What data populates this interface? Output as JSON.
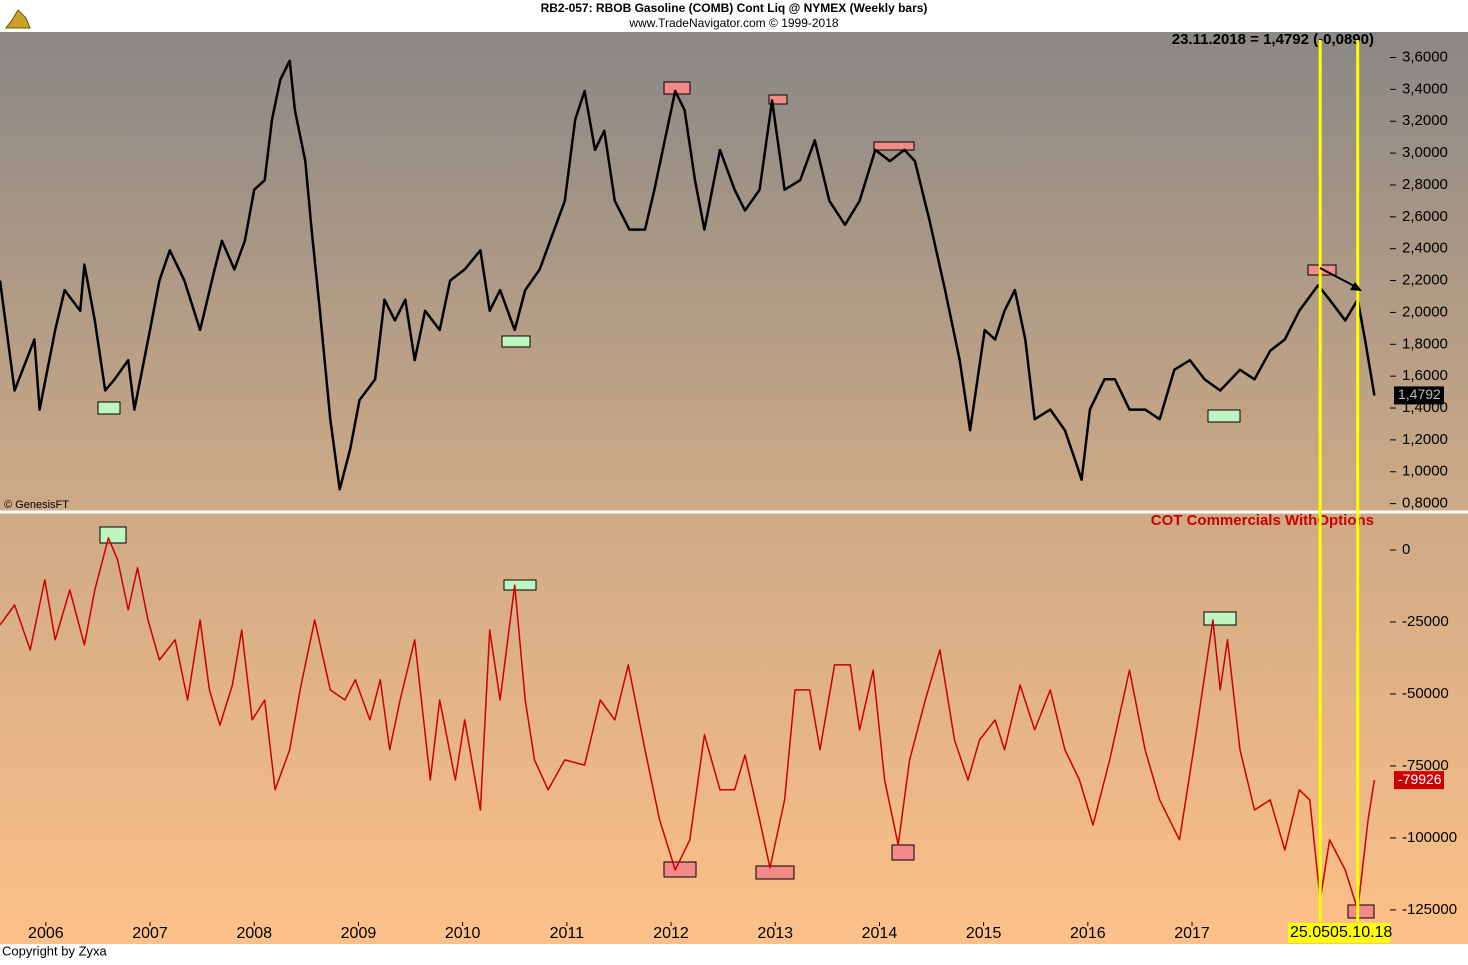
{
  "header": {
    "title": "RB2-057:  RBOB Gasoline (COMB) Cont Liq @ NYMEX  (Weekly bars)",
    "subtitle": "www.TradeNavigator.com © 1999-2018"
  },
  "footer": "Copyright by Zyxa",
  "chart_data": [
    {
      "type": "line",
      "annotation": "23.11.2018 = 1,4792 (-0,0890)",
      "source": "© GenesisFT",
      "last_value_label": "1,4792",
      "xlim": [
        2005.56,
        2018.9
      ],
      "ylim": [
        0.76,
        3.76
      ],
      "yticks": [
        {
          "value": 0.8,
          "label": "0,8000"
        },
        {
          "value": 1.0,
          "label": "1,0000"
        },
        {
          "value": 1.2,
          "label": "1,2000"
        },
        {
          "value": 1.4,
          "label": "1,4000"
        },
        {
          "value": 1.6,
          "label": "1,6000"
        },
        {
          "value": 1.8,
          "label": "1,8000"
        },
        {
          "value": 2.0,
          "label": "2,0000"
        },
        {
          "value": 2.2,
          "label": "2,2000"
        },
        {
          "value": 2.4,
          "label": "2,4000"
        },
        {
          "value": 2.6,
          "label": "2,6000"
        },
        {
          "value": 2.8,
          "label": "2,8000"
        },
        {
          "value": 3.0,
          "label": "3,0000"
        },
        {
          "value": 3.2,
          "label": "3,2000"
        },
        {
          "value": 3.4,
          "label": "3,4000"
        },
        {
          "value": 3.6,
          "label": "3,6000"
        }
      ],
      "x": [
        2005.56,
        2005.7,
        2005.89,
        2005.94,
        2006.09,
        2006.18,
        2006.33,
        2006.37,
        2006.47,
        2006.57,
        2006.66,
        2006.79,
        2006.85,
        2007.0,
        2007.09,
        2007.19,
        2007.33,
        2007.48,
        2007.62,
        2007.69,
        2007.81,
        2007.91,
        2008.0,
        2008.1,
        2008.17,
        2008.25,
        2008.34,
        2008.39,
        2008.49,
        2008.55,
        2008.63,
        2008.73,
        2008.82,
        2008.92,
        2009.01,
        2009.16,
        2009.25,
        2009.35,
        2009.45,
        2009.54,
        2009.64,
        2009.78,
        2009.88,
        2010.02,
        2010.17,
        2010.26,
        2010.36,
        2010.5,
        2010.6,
        2010.74,
        2010.84,
        2010.98,
        2011.08,
        2011.17,
        2011.27,
        2011.36,
        2011.46,
        2011.6,
        2011.75,
        2011.84,
        2011.94,
        2012.04,
        2012.13,
        2012.23,
        2012.32,
        2012.47,
        2012.61,
        2012.71,
        2012.85,
        2012.97,
        2013.09,
        2013.24,
        2013.38,
        2013.52,
        2013.67,
        2013.81,
        2013.96,
        2014.1,
        2014.24,
        2014.34,
        2014.48,
        2014.63,
        2014.77,
        2014.87,
        2015.01,
        2015.11,
        2015.2,
        2015.3,
        2015.4,
        2015.49,
        2015.64,
        2015.78,
        2015.88,
        2015.94,
        2016.02,
        2016.16,
        2016.26,
        2016.4,
        2016.55,
        2016.69,
        2016.83,
        2016.98,
        2017.12,
        2017.27,
        2017.46,
        2017.6,
        2017.75,
        2017.89,
        2018.03,
        2018.21,
        2018.32,
        2018.47,
        2018.59,
        2018.66,
        2018.75
      ],
      "series": [
        {
          "name": "RBOB Gasoline",
          "color": "#000000",
          "values": [
            2.2,
            1.51,
            1.83,
            1.39,
            1.89,
            2.14,
            2.01,
            2.3,
            1.95,
            1.51,
            1.58,
            1.7,
            1.39,
            1.89,
            2.2,
            2.39,
            2.2,
            1.89,
            2.27,
            2.45,
            2.27,
            2.45,
            2.77,
            2.83,
            3.21,
            3.46,
            3.58,
            3.27,
            2.95,
            2.52,
            2.01,
            1.33,
            0.89,
            1.14,
            1.45,
            1.58,
            2.08,
            1.95,
            2.08,
            1.7,
            2.01,
            1.89,
            2.2,
            2.27,
            2.39,
            2.01,
            2.14,
            1.89,
            2.14,
            2.27,
            2.45,
            2.7,
            3.21,
            3.39,
            3.02,
            3.14,
            2.7,
            2.52,
            2.52,
            2.77,
            3.08,
            3.39,
            3.27,
            2.83,
            2.52,
            3.02,
            2.77,
            2.64,
            2.77,
            3.33,
            2.77,
            2.83,
            3.08,
            2.7,
            2.55,
            2.7,
            3.02,
            2.95,
            3.02,
            2.95,
            2.58,
            2.14,
            1.7,
            1.26,
            1.89,
            1.83,
            2.01,
            2.14,
            1.83,
            1.33,
            1.39,
            1.26,
            1.07,
            0.95,
            1.39,
            1.58,
            1.58,
            1.39,
            1.39,
            1.33,
            1.64,
            1.7,
            1.58,
            1.51,
            1.64,
            1.58,
            1.76,
            1.83,
            2.01,
            2.17,
            2.08,
            1.95,
            2.08,
            1.83,
            1.4792
          ]
        }
      ]
    },
    {
      "type": "line",
      "title": "COT Commercials WithOptions",
      "xlim": [
        2005.56,
        2018.9
      ],
      "ylim": [
        -129200,
        12500
      ],
      "yticks": [
        0,
        -25000,
        -50000,
        -75000,
        -100000,
        -125000
      ],
      "xticks": [
        2006,
        2007,
        2008,
        2009,
        2010,
        2011,
        2012,
        2013,
        2014,
        2015,
        2016,
        2017
      ],
      "vlines": [
        {
          "x": 2018.23,
          "label": "25.05"
        },
        {
          "x": 2018.59,
          "label": "05.10.18"
        }
      ],
      "x": [
        2005.56,
        2005.7,
        2005.85,
        2005.99,
        2006.09,
        2006.23,
        2006.37,
        2006.47,
        2006.6,
        2006.69,
        2006.79,
        2006.88,
        2006.98,
        2007.09,
        2007.24,
        2007.36,
        2007.48,
        2007.57,
        2007.67,
        2007.79,
        2007.88,
        2007.98,
        2008.1,
        2008.2,
        2008.34,
        2008.44,
        2008.58,
        2008.73,
        2008.87,
        2008.97,
        2009.11,
        2009.21,
        2009.3,
        2009.4,
        2009.54,
        2009.69,
        2009.78,
        2009.93,
        2010.02,
        2010.17,
        2010.26,
        2010.36,
        2010.5,
        2010.6,
        2010.69,
        2010.82,
        2010.98,
        2011.17,
        2011.32,
        2011.46,
        2011.59,
        2011.75,
        2011.89,
        2012.04,
        2012.18,
        2012.32,
        2012.47,
        2012.61,
        2012.71,
        2012.85,
        2012.95,
        2013.09,
        2013.19,
        2013.33,
        2013.43,
        2013.57,
        2013.72,
        2013.81,
        2013.94,
        2014.05,
        2014.18,
        2014.29,
        2014.44,
        2014.58,
        2014.72,
        2014.85,
        2014.96,
        2015.11,
        2015.2,
        2015.35,
        2015.49,
        2015.64,
        2015.78,
        2015.92,
        2016.05,
        2016.21,
        2016.4,
        2016.55,
        2016.69,
        2016.88,
        2017.03,
        2017.2,
        2017.27,
        2017.34,
        2017.46,
        2017.6,
        2017.75,
        2017.89,
        2018.03,
        2018.13,
        2018.23,
        2018.32,
        2018.47,
        2018.59,
        2018.69,
        2018.75
      ],
      "series": [
        {
          "name": "COT Commercials",
          "color": "#cc0000",
          "values": [
            -26000,
            -19100,
            -34700,
            -10400,
            -31200,
            -13900,
            -33000,
            -13900,
            4200,
            -3500,
            -20800,
            -6200,
            -24300,
            -38200,
            -31200,
            -52100,
            -24300,
            -48600,
            -60800,
            -46900,
            -27800,
            -59000,
            -52100,
            -83300,
            -69400,
            -48600,
            -24300,
            -48600,
            -52100,
            -45100,
            -59000,
            -45100,
            -69400,
            -52100,
            -31200,
            -79900,
            -52100,
            -79900,
            -59000,
            -90300,
            -27800,
            -52100,
            -12200,
            -52100,
            -72900,
            -83300,
            -72900,
            -74700,
            -52100,
            -59000,
            -39900,
            -69400,
            -93700,
            -111100,
            -100700,
            -64200,
            -83300,
            -83300,
            -71200,
            -93700,
            -110400,
            -86800,
            -48600,
            -48600,
            -69400,
            -39900,
            -39900,
            -62500,
            -41700,
            -79900,
            -102400,
            -72900,
            -52100,
            -34700,
            -66000,
            -79900,
            -66000,
            -59000,
            -69400,
            -46900,
            -62500,
            -48600,
            -69400,
            -79900,
            -95500,
            -72900,
            -41700,
            -69400,
            -86800,
            -100700,
            -66000,
            -24300,
            -48600,
            -31200,
            -69400,
            -90300,
            -86800,
            -104200,
            -83300,
            -86800,
            -121500,
            -100700,
            -111100,
            -125000,
            -93700,
            -79926
          ]
        }
      ]
    }
  ]
}
